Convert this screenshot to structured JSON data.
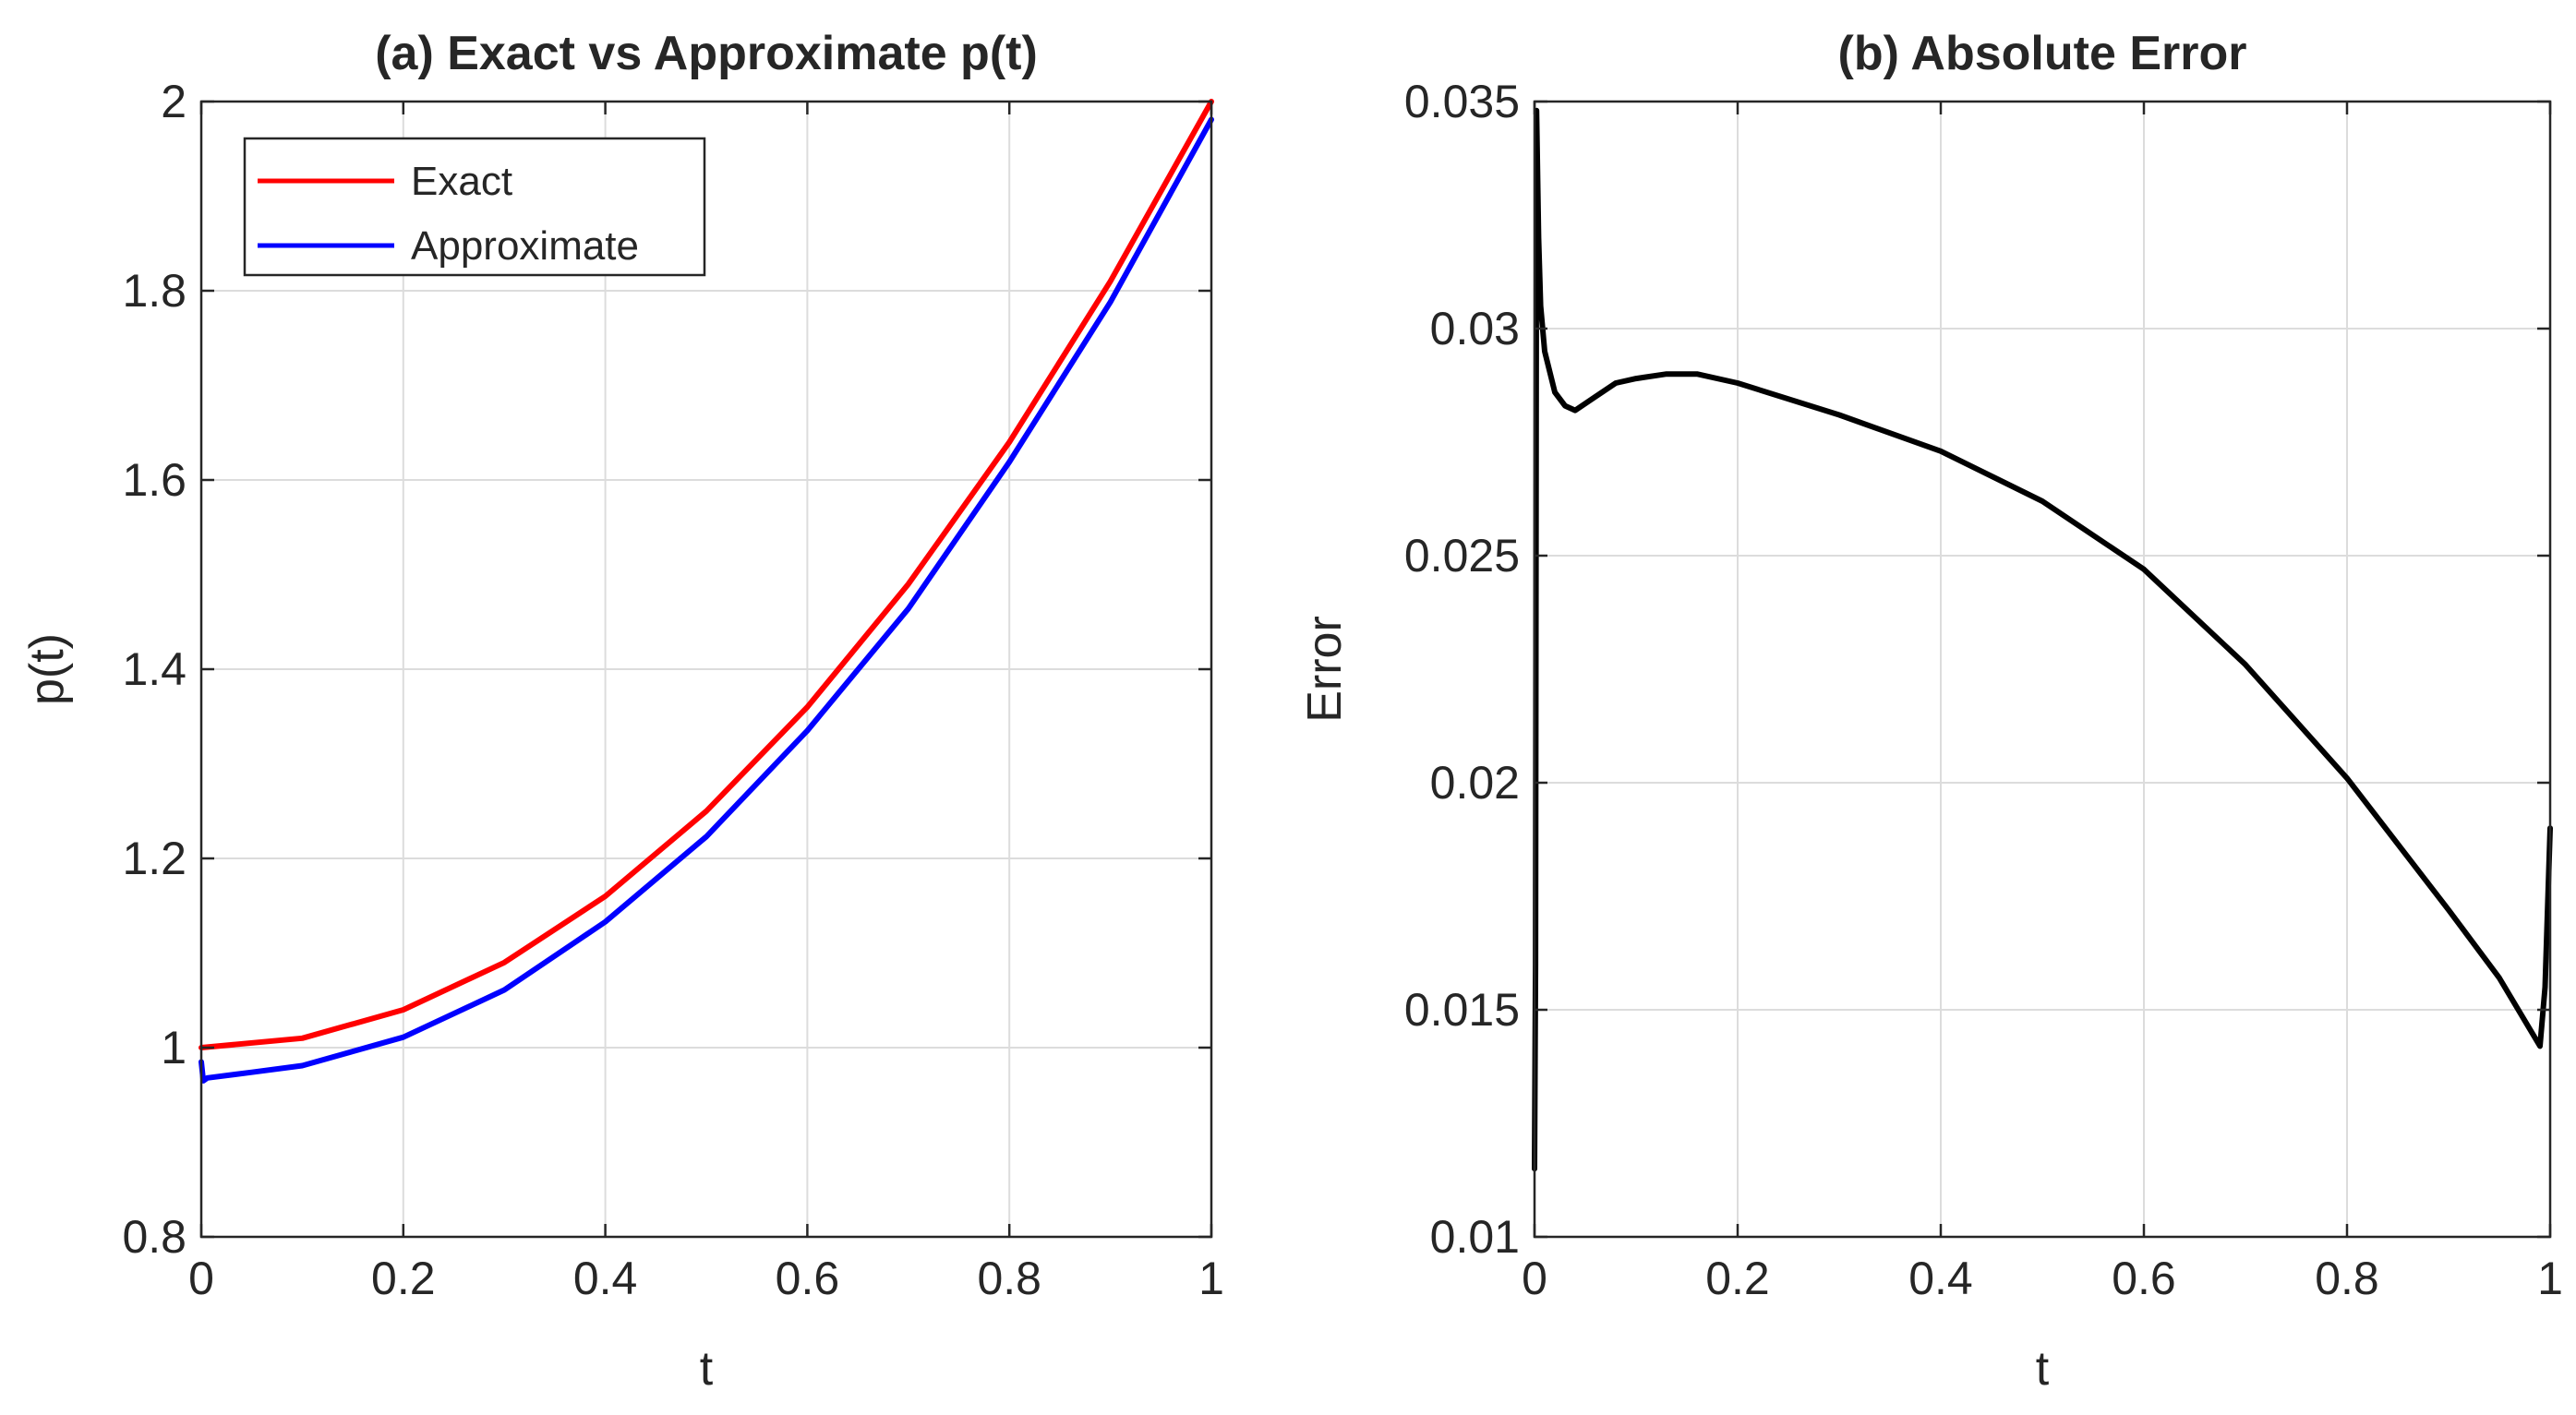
{
  "chart_data": [
    {
      "type": "line",
      "title": "(a) Exact vs Approximate p(t)",
      "xlabel": "t",
      "ylabel": "p(t)",
      "xlim": [
        0,
        1
      ],
      "ylim": [
        0.8,
        2
      ],
      "xticks": [
        0,
        0.2,
        0.4,
        0.6,
        0.8,
        1
      ],
      "xtick_labels": [
        "0",
        "0.2",
        "0.4",
        "0.6",
        "0.8",
        "1"
      ],
      "yticks": [
        0.8,
        1,
        1.2,
        1.4,
        1.6,
        1.8,
        2
      ],
      "ytick_labels": [
        "0.8",
        "1",
        "1.2",
        "1.4",
        "1.6",
        "1.8",
        "2"
      ],
      "grid": true,
      "legend_position": "top-left",
      "series": [
        {
          "name": "Exact",
          "color": "#ff0000",
          "x": [
            0,
            0.1,
            0.2,
            0.3,
            0.4,
            0.5,
            0.6,
            0.7,
            0.8,
            0.9,
            1.0
          ],
          "y": [
            1.0,
            1.01,
            1.04,
            1.09,
            1.16,
            1.25,
            1.36,
            1.49,
            1.64,
            1.81,
            2.0
          ]
        },
        {
          "name": "Approximate",
          "color": "#0000ff",
          "x": [
            0,
            0.002,
            0.006,
            0.05,
            0.1,
            0.2,
            0.3,
            0.4,
            0.5,
            0.6,
            0.7,
            0.8,
            0.9,
            1.0
          ],
          "y": [
            0.985,
            0.965,
            0.968,
            0.974,
            0.981,
            1.011,
            1.061,
            1.133,
            1.223,
            1.335,
            1.464,
            1.619,
            1.788,
            1.981
          ]
        }
      ]
    },
    {
      "type": "line",
      "title": "(b) Absolute Error",
      "xlabel": "t",
      "ylabel": "Error",
      "xlim": [
        0,
        1
      ],
      "ylim": [
        0.01,
        0.035
      ],
      "xticks": [
        0,
        0.2,
        0.4,
        0.6,
        0.8,
        1
      ],
      "xtick_labels": [
        "0",
        "0.2",
        "0.4",
        "0.6",
        "0.8",
        "1"
      ],
      "yticks": [
        0.01,
        0.015,
        0.02,
        0.025,
        0.03,
        0.035
      ],
      "ytick_labels": [
        "0.01",
        "0.015",
        "0.02",
        "0.025",
        "0.03",
        "0.035"
      ],
      "grid": true,
      "series": [
        {
          "name": "Error",
          "color": "#000000",
          "x": [
            0,
            0.001,
            0.002,
            0.004,
            0.006,
            0.01,
            0.02,
            0.03,
            0.04,
            0.06,
            0.08,
            0.1,
            0.13,
            0.16,
            0.2,
            0.3,
            0.4,
            0.5,
            0.6,
            0.7,
            0.8,
            0.9,
            0.95,
            0.99,
            0.995,
            1.0
          ],
          "y": [
            0.0115,
            0.016,
            0.0348,
            0.032,
            0.0305,
            0.0295,
            0.0286,
            0.0283,
            0.0282,
            0.0285,
            0.0288,
            0.0289,
            0.029,
            0.029,
            0.0288,
            0.0281,
            0.0273,
            0.0262,
            0.0247,
            0.0226,
            0.0201,
            0.0172,
            0.0157,
            0.0142,
            0.0155,
            0.019
          ]
        }
      ]
    }
  ]
}
